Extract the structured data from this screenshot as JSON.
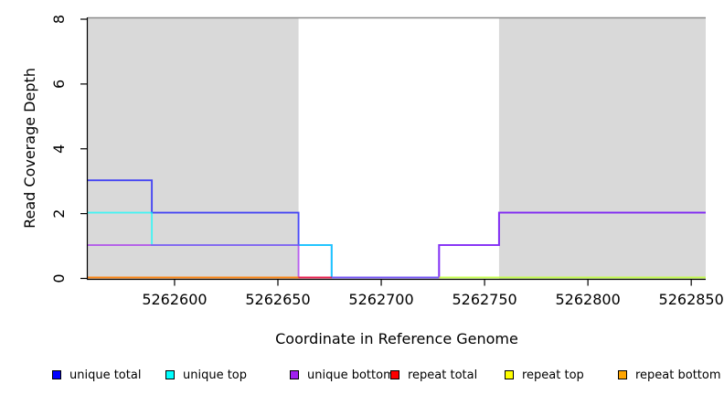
{
  "chart_data": {
    "type": "line",
    "subtype": "step-coverage",
    "title": "",
    "xlabel": "Coordinate in Reference Genome",
    "ylabel": "Read Coverage Depth",
    "xlim": [
      5262558,
      5262857
    ],
    "ylim": [
      0,
      8
    ],
    "x_ticks": [
      "5262600",
      "5262650",
      "5262700",
      "5262750",
      "5262800",
      "5262850"
    ],
    "x_tick_values": [
      5262600,
      5262650,
      5262700,
      5262750,
      5262800,
      5262850
    ],
    "y_ticks": [
      "0",
      "2",
      "4",
      "6",
      "8"
    ],
    "y_tick_values": [
      0,
      2,
      4,
      6,
      8
    ],
    "grid": "off",
    "legend_position": "bottom",
    "repeat_region_fill": "#D9D9D9",
    "top_boundary_color": "#8C8C8C",
    "axis_color": "#000000",
    "repeat_regions": [
      {
        "x0": 5262558,
        "x1": 5262660
      },
      {
        "x0": 5262757,
        "x1": 5262857
      }
    ],
    "series": [
      {
        "name": "unique total",
        "color": "#0000FF",
        "steps": [
          [
            5262558,
            3
          ],
          [
            5262589,
            2
          ],
          [
            5262660,
            1
          ],
          [
            5262676,
            0
          ],
          [
            5262728,
            1
          ],
          [
            5262757,
            2
          ]
        ],
        "end": 5262857
      },
      {
        "name": "unique top",
        "color": "#00FFFF",
        "steps": [
          [
            5262558,
            2
          ],
          [
            5262589,
            1
          ],
          [
            5262676,
            0
          ]
        ],
        "end": 5262857
      },
      {
        "name": "unique bottom",
        "color": "#A020F0",
        "steps": [
          [
            5262558,
            1
          ],
          [
            5262660,
            0
          ],
          [
            5262728,
            1
          ],
          [
            5262757,
            2
          ]
        ],
        "end": 5262857
      },
      {
        "name": "repeat total",
        "color": "#FF0000",
        "steps": [
          [
            5262558,
            0
          ]
        ],
        "end": 5262676
      },
      {
        "name": "repeat top",
        "color": "#FFFF00",
        "steps": [
          [
            5262728,
            0
          ]
        ],
        "end": 5262857
      },
      {
        "name": "repeat bottom",
        "color": "#FFA500",
        "steps": [
          [
            5262558,
            0
          ]
        ],
        "end": 5262660
      }
    ]
  },
  "legend": {
    "items": [
      {
        "label": "unique total",
        "color": "#0000FF"
      },
      {
        "label": "unique top",
        "color": "#00FFFF"
      },
      {
        "label": "unique bottom",
        "color": "#A020F0"
      },
      {
        "label": "repeat total",
        "color": "#FF0000"
      },
      {
        "label": "repeat top",
        "color": "#FFFF00"
      },
      {
        "label": "repeat bottom",
        "color": "#FFA500"
      }
    ]
  }
}
